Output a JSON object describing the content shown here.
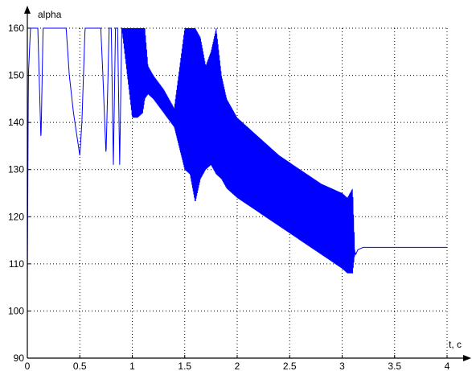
{
  "chart_data": {
    "type": "line",
    "title": "",
    "xlabel": "t, c",
    "ylabel": "alpha",
    "xlim": [
      0,
      4
    ],
    "ylim": [
      90,
      160
    ],
    "xticks": [
      0,
      0.5,
      1,
      1.5,
      2,
      2.5,
      3,
      3.5,
      4
    ],
    "xtick_labels": [
      "0",
      "0.5",
      "1",
      "1.5",
      "2",
      "2.5",
      "3",
      "3.5",
      "4"
    ],
    "yticks": [
      90,
      100,
      110,
      120,
      130,
      140,
      150,
      160
    ],
    "ytick_labels": [
      "90",
      "100",
      "110",
      "120",
      "130",
      "140",
      "150",
      "160"
    ],
    "grid": true,
    "line_color": "#0000ff",
    "series": [
      {
        "x": [
          0.0,
          0.01,
          0.03,
          0.06,
          0.1,
          0.13,
          0.15,
          0.2,
          0.3,
          0.37,
          0.4,
          0.44,
          0.48,
          0.5,
          0.52,
          0.55,
          0.6,
          0.65,
          0.7,
          0.72,
          0.75,
          0.78,
          0.8,
          0.82,
          0.84,
          0.86,
          0.88,
          0.9,
          1.0,
          1.05,
          1.1,
          1.12,
          1.15,
          1.2,
          1.3,
          1.4,
          1.5,
          1.55,
          1.6,
          1.65,
          1.7,
          1.75,
          1.8,
          1.85,
          1.9,
          1.95,
          2.0,
          2.2,
          2.4,
          2.6,
          2.8,
          3.0,
          3.05,
          3.1,
          3.12,
          3.13,
          3.15,
          3.2,
          3.5,
          3.8,
          4.0
        ],
        "y_upper": [
          106,
          150,
          160,
          160,
          160,
          136,
          160,
          160,
          160,
          160,
          150,
          142,
          136,
          133,
          140,
          160,
          160,
          160,
          160,
          150,
          133,
          160,
          160,
          131,
          160,
          160,
          131,
          160,
          160,
          160,
          160,
          160,
          152,
          150,
          147,
          143,
          160,
          160,
          160,
          158,
          152,
          155,
          160,
          150,
          145,
          143,
          141,
          137,
          133,
          130,
          127,
          125,
          124,
          126,
          113,
          112,
          113,
          113.5,
          113.5,
          113.5,
          113.5
        ],
        "y_lower": [
          106,
          150,
          160,
          160,
          160,
          136,
          160,
          160,
          160,
          160,
          150,
          142,
          136,
          133,
          140,
          160,
          160,
          160,
          160,
          150,
          133,
          160,
          160,
          131,
          160,
          160,
          131,
          160,
          141,
          141,
          142,
          145,
          146,
          145,
          142,
          139,
          130,
          129,
          123,
          128,
          130,
          131,
          129,
          128,
          126,
          125,
          124,
          121,
          118,
          115,
          112,
          109,
          108,
          108,
          112,
          112,
          113,
          113.5,
          113.5,
          113.5,
          113.5
        ]
      }
    ]
  }
}
